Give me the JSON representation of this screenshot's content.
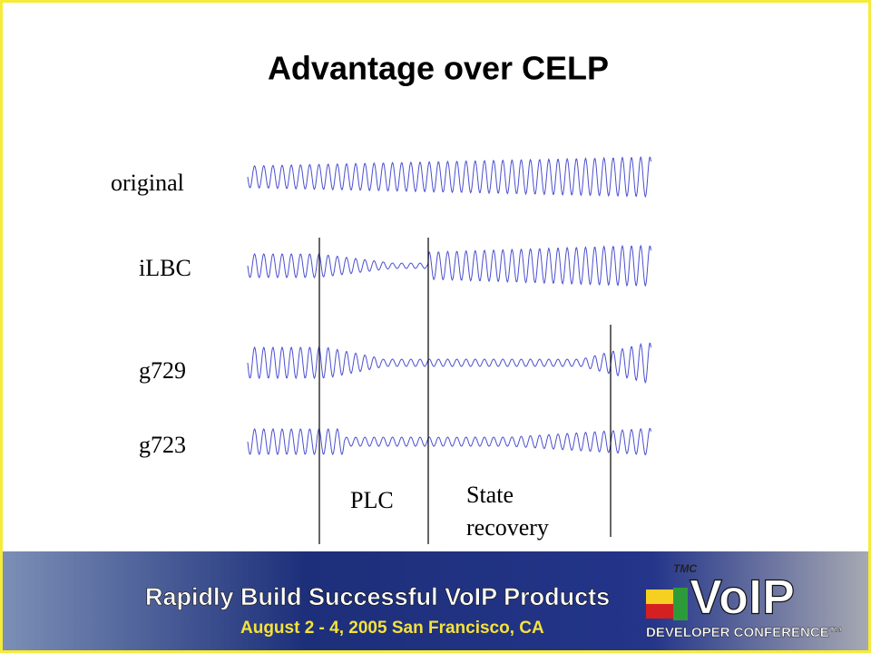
{
  "slide": {
    "title": "Advantage over CELP",
    "waveform_labels": [
      "original",
      "iLBC",
      "g729",
      "g723"
    ],
    "annotations": {
      "plc": "PLC",
      "state_recovery": [
        "State",
        "recovery"
      ]
    },
    "banner": {
      "headline": "Rapidly Build Successful VoIP Products",
      "dates": "August 2 - 4, 2005 San Francisco, CA",
      "brand": "TMC",
      "logo": "VoIP",
      "conference": "DEVELOPER CONFERENCE™"
    }
  }
}
